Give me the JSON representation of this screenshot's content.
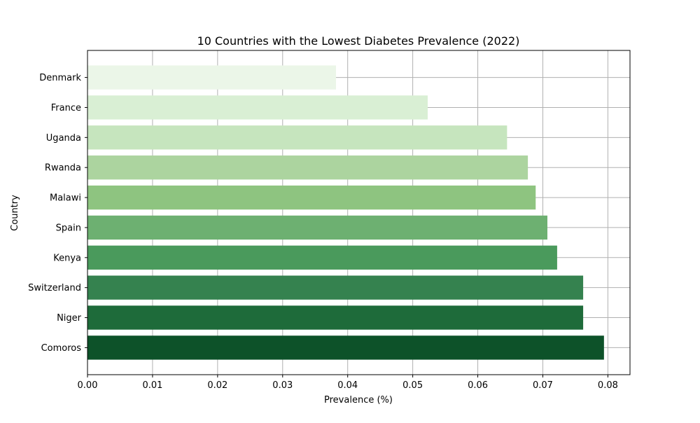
{
  "chart_data": {
    "type": "bar",
    "orientation": "horizontal",
    "title": "10 Countries with the Lowest Diabetes Prevalence (2022)",
    "xlabel": "Prevalence (%)",
    "ylabel": "Country",
    "categories": [
      "Denmark",
      "France",
      "Uganda",
      "Rwanda",
      "Malawi",
      "Spain",
      "Kenya",
      "Switzerland",
      "Niger",
      "Comoros"
    ],
    "values": [
      0.0382,
      0.0523,
      0.0645,
      0.0677,
      0.0689,
      0.0707,
      0.0722,
      0.0762,
      0.0762,
      0.0794
    ],
    "xlim": [
      0.0,
      0.0834
    ],
    "xticks": [
      0.0,
      0.01,
      0.02,
      0.03,
      0.04,
      0.05,
      0.06,
      0.07,
      0.08
    ],
    "xtick_labels": [
      "0.00",
      "0.01",
      "0.02",
      "0.03",
      "0.04",
      "0.05",
      "0.06",
      "0.07",
      "0.08"
    ],
    "grid": true,
    "colormap": "Greens",
    "bar_colors": [
      "#ebf6e8",
      "#d9efd4",
      "#c6e5be",
      "#acd49f",
      "#8ec480",
      "#6db071",
      "#4a9a5c",
      "#35824f",
      "#1e6b3a",
      "#0d5229"
    ],
    "grid_color": "#b0b0b0"
  }
}
